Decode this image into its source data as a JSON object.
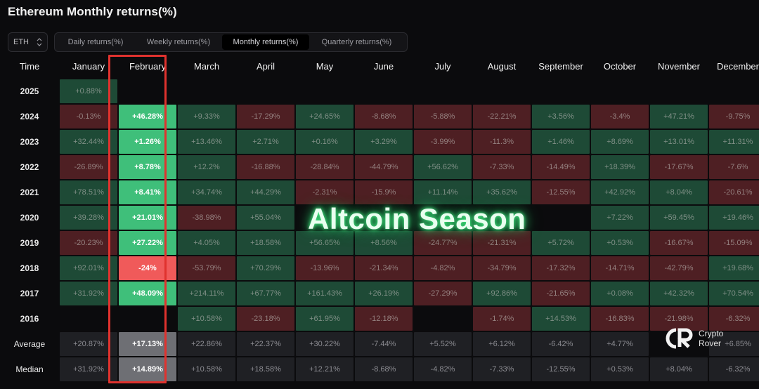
{
  "title": "Ethereum Monthly returns(%)",
  "asset_selector": {
    "value": "ETH"
  },
  "tabs": [
    {
      "label": "Daily returns(%)",
      "active": false
    },
    {
      "label": "Weekly returns(%)",
      "active": false
    },
    {
      "label": "Monthly returns(%)",
      "active": true
    },
    {
      "label": "Quarterly returns(%)",
      "active": false
    }
  ],
  "overlay_text": "Altcoin Season",
  "logo": {
    "line1": "Crypto",
    "line2": "Rover"
  },
  "colors": {
    "positive": "#1e4a36",
    "negative": "#4e1f23",
    "highlight_positive": "#3fbf7a",
    "highlight_negative": "#f05a5a",
    "highlight_border": "#e0322e"
  },
  "chart_data": {
    "type": "table",
    "title": "Ethereum Monthly returns(%)",
    "corner_label": "Time",
    "highlighted_column": "February",
    "columns": [
      "January",
      "February",
      "March",
      "April",
      "May",
      "June",
      "July",
      "August",
      "September",
      "October",
      "November",
      "December"
    ],
    "rows": [
      {
        "label": "2025",
        "values": [
          "+0.88%",
          "",
          "",
          "",
          "",
          "",
          "",
          "",
          "",
          "",
          "",
          ""
        ]
      },
      {
        "label": "2024",
        "values": [
          "-0.13%",
          "+46.28%",
          "+9.33%",
          "-17.29%",
          "+24.65%",
          "-8.68%",
          "-5.88%",
          "-22.21%",
          "+3.56%",
          "-3.4%",
          "+47.21%",
          "-9.75%"
        ]
      },
      {
        "label": "2023",
        "values": [
          "+32.44%",
          "+1.26%",
          "+13.46%",
          "+2.71%",
          "+0.16%",
          "+3.29%",
          "-3.99%",
          "-11.3%",
          "+1.46%",
          "+8.69%",
          "+13.01%",
          "+11.31%"
        ]
      },
      {
        "label": "2022",
        "values": [
          "-26.89%",
          "+8.78%",
          "+12.2%",
          "-16.88%",
          "-28.84%",
          "-44.79%",
          "+56.62%",
          "-7.33%",
          "-14.49%",
          "+18.39%",
          "-17.67%",
          "-7.6%"
        ]
      },
      {
        "label": "2021",
        "values": [
          "+78.51%",
          "+8.41%",
          "+34.74%",
          "+44.29%",
          "-2.31%",
          "-15.9%",
          "+11.14%",
          "+35.62%",
          "-12.55%",
          "+42.92%",
          "+8.04%",
          "-20.61%"
        ]
      },
      {
        "label": "2020",
        "values": [
          "+39.28%",
          "+21.01%",
          "-38.98%",
          "+55.04%",
          "",
          "",
          "",
          "",
          "",
          "+7.22%",
          "+59.45%",
          "+19.46%"
        ]
      },
      {
        "label": "2019",
        "values": [
          "-20.23%",
          "+27.22%",
          "+4.05%",
          "+18.58%",
          "+56.65%",
          "+8.56%",
          "-24.77%",
          "-21.31%",
          "+5.72%",
          "+0.53%",
          "-16.67%",
          "-15.09%"
        ]
      },
      {
        "label": "2018",
        "values": [
          "+92.01%",
          "-24%",
          "-53.79%",
          "+70.29%",
          "-13.96%",
          "-21.34%",
          "-4.82%",
          "-34.79%",
          "-17.32%",
          "-14.71%",
          "-42.79%",
          "+19.68%"
        ]
      },
      {
        "label": "2017",
        "values": [
          "+31.92%",
          "+48.09%",
          "+214.11%",
          "+67.77%",
          "+161.43%",
          "+26.19%",
          "-27.29%",
          "+92.86%",
          "-21.65%",
          "+0.08%",
          "+42.32%",
          "+70.54%"
        ]
      },
      {
        "label": "2016",
        "values": [
          "",
          "",
          "+10.58%",
          "-23.18%",
          "+61.95%",
          "-12.18%",
          "",
          "-1.74%",
          "+14.53%",
          "-16.83%",
          "-21.98%",
          "-6.32%"
        ]
      }
    ],
    "summary_rows": [
      {
        "label": "Average",
        "values": [
          "+20.87%",
          "+17.13%",
          "+22.86%",
          "+22.37%",
          "+30.22%",
          "-7.44%",
          "+5.52%",
          "+6.12%",
          "-6.42%",
          "+4.77%",
          "",
          "+6.85%"
        ]
      },
      {
        "label": "Median",
        "values": [
          "+31.92%",
          "+14.89%",
          "+10.58%",
          "+18.58%",
          "+12.21%",
          "-8.68%",
          "-4.82%",
          "-7.33%",
          "-12.55%",
          "+0.53%",
          "+8.04%",
          "-6.32%"
        ]
      }
    ]
  }
}
